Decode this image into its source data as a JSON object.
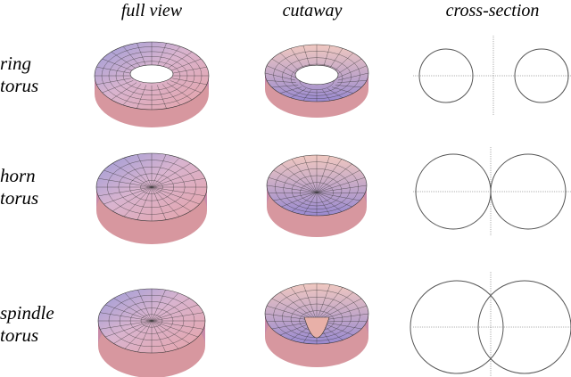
{
  "columns": [
    "full view",
    "cutaway",
    "cross-section"
  ],
  "rows": [
    {
      "label": [
        "ring",
        "torus"
      ]
    },
    {
      "label": [
        "horn",
        "torus"
      ]
    },
    {
      "label": [
        "spindle",
        "torus"
      ]
    }
  ]
}
